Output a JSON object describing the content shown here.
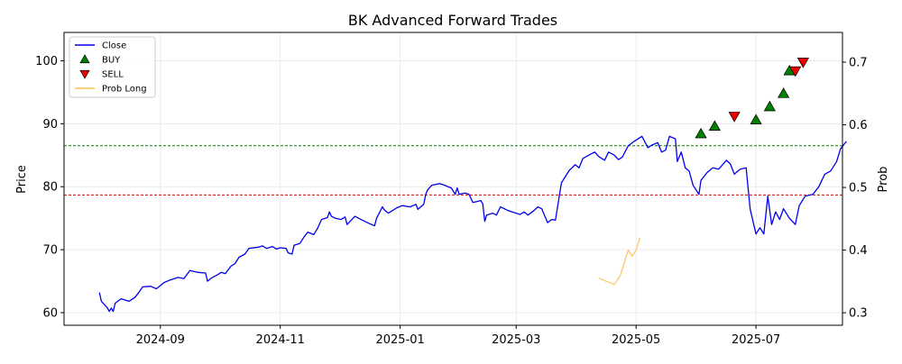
{
  "chart_data": {
    "type": "line",
    "title": "BK Advanced Forward Trades",
    "ylabel_left": "Price",
    "ylabel_right": "Prob",
    "xlabel": "",
    "x_range": [
      "2024-07-14",
      "2025-08-14"
    ],
    "ylim_left": [
      58,
      104.5
    ],
    "ylim_right": [
      0.28,
      0.7475
    ],
    "x_ticks": [
      {
        "date": "2024-09-01",
        "label": "2024-09"
      },
      {
        "date": "2024-11-01",
        "label": "2024-11"
      },
      {
        "date": "2025-01-01",
        "label": "2025-01"
      },
      {
        "date": "2025-03-01",
        "label": "2025-03"
      },
      {
        "date": "2025-05-01",
        "label": "2025-05"
      },
      {
        "date": "2025-07-01",
        "label": "2025-07"
      }
    ],
    "y_ticks_left": [
      60,
      70,
      80,
      90,
      100
    ],
    "y_ticks_right": [
      0.3,
      0.4,
      0.5,
      0.6,
      0.7
    ],
    "grid": true,
    "legend_position": "top-left",
    "legend": [
      {
        "label": "Close",
        "kind": "line",
        "color": "#0000ee"
      },
      {
        "label": "BUY",
        "kind": "marker-up",
        "color": "#008000"
      },
      {
        "label": "SELL",
        "kind": "marker-down",
        "color": "#ee0000"
      },
      {
        "label": "Prob Long",
        "kind": "line",
        "color": "#ffbf4d"
      }
    ],
    "hlines": [
      {
        "value": 86.5,
        "color": "#008000"
      },
      {
        "value": 78.7,
        "color": "#dd0000"
      }
    ],
    "series": [
      {
        "name": "Close",
        "axis": "left",
        "color": "#0000ee",
        "points": [
          [
            "2024-08-01",
            63.2
          ],
          [
            "2024-08-02",
            61.8
          ],
          [
            "2024-08-05",
            60.8
          ],
          [
            "2024-08-06",
            60.2
          ],
          [
            "2024-08-07",
            60.7
          ],
          [
            "2024-08-08",
            60.2
          ],
          [
            "2024-08-09",
            61.5
          ],
          [
            "2024-08-12",
            62.2
          ],
          [
            "2024-08-14",
            62.0
          ],
          [
            "2024-08-16",
            61.8
          ],
          [
            "2024-08-19",
            62.4
          ],
          [
            "2024-08-21",
            63.2
          ],
          [
            "2024-08-23",
            64.1
          ],
          [
            "2024-08-27",
            64.2
          ],
          [
            "2024-08-30",
            63.8
          ],
          [
            "2024-09-03",
            64.8
          ],
          [
            "2024-09-06",
            65.2
          ],
          [
            "2024-09-10",
            65.6
          ],
          [
            "2024-09-13",
            65.4
          ],
          [
            "2024-09-16",
            66.7
          ],
          [
            "2024-09-20",
            66.4
          ],
          [
            "2024-09-24",
            66.3
          ],
          [
            "2024-09-25",
            65.0
          ],
          [
            "2024-09-27",
            65.5
          ],
          [
            "2024-09-30",
            66.0
          ],
          [
            "2024-10-02",
            66.4
          ],
          [
            "2024-10-04",
            66.2
          ],
          [
            "2024-10-07",
            67.4
          ],
          [
            "2024-10-09",
            67.8
          ],
          [
            "2024-10-11",
            68.8
          ],
          [
            "2024-10-14",
            69.3
          ],
          [
            "2024-10-16",
            70.2
          ],
          [
            "2024-10-21",
            70.4
          ],
          [
            "2024-10-23",
            70.6
          ],
          [
            "2024-10-25",
            70.2
          ],
          [
            "2024-10-28",
            70.5
          ],
          [
            "2024-10-30",
            70.1
          ],
          [
            "2024-11-01",
            70.3
          ],
          [
            "2024-11-04",
            70.2
          ],
          [
            "2024-11-05",
            69.5
          ],
          [
            "2024-11-07",
            69.3
          ],
          [
            "2024-11-08",
            70.7
          ],
          [
            "2024-11-11",
            71.0
          ],
          [
            "2024-11-13",
            72.0
          ],
          [
            "2024-11-15",
            72.8
          ],
          [
            "2024-11-18",
            72.4
          ],
          [
            "2024-11-20",
            73.4
          ],
          [
            "2024-11-22",
            74.8
          ],
          [
            "2024-11-25",
            75.1
          ],
          [
            "2024-11-26",
            76.0
          ],
          [
            "2024-11-27",
            75.3
          ],
          [
            "2024-11-29",
            75.0
          ],
          [
            "2024-12-02",
            74.8
          ],
          [
            "2024-12-04",
            75.2
          ],
          [
            "2024-12-05",
            74.0
          ],
          [
            "2024-12-09",
            75.3
          ],
          [
            "2024-12-12",
            74.8
          ],
          [
            "2024-12-16",
            74.2
          ],
          [
            "2024-12-19",
            73.8
          ],
          [
            "2024-12-20",
            75.0
          ],
          [
            "2024-12-23",
            76.8
          ],
          [
            "2024-12-24",
            76.3
          ],
          [
            "2024-12-26",
            75.8
          ],
          [
            "2024-12-30",
            76.6
          ],
          [
            "2025-01-02",
            77.0
          ],
          [
            "2025-01-06",
            76.8
          ],
          [
            "2025-01-09",
            77.2
          ],
          [
            "2025-01-10",
            76.4
          ],
          [
            "2025-01-13",
            77.2
          ],
          [
            "2025-01-14",
            78.8
          ],
          [
            "2025-01-15",
            79.5
          ],
          [
            "2025-01-17",
            80.2
          ],
          [
            "2025-01-21",
            80.5
          ],
          [
            "2025-01-23",
            80.3
          ],
          [
            "2025-01-27",
            79.8
          ],
          [
            "2025-01-29",
            78.8
          ],
          [
            "2025-01-30",
            79.8
          ],
          [
            "2025-01-31",
            78.8
          ],
          [
            "2025-02-03",
            79.0
          ],
          [
            "2025-02-05",
            78.8
          ],
          [
            "2025-02-07",
            77.5
          ],
          [
            "2025-02-11",
            77.8
          ],
          [
            "2025-02-12",
            77.3
          ],
          [
            "2025-02-13",
            74.5
          ],
          [
            "2025-02-14",
            75.5
          ],
          [
            "2025-02-17",
            75.8
          ],
          [
            "2025-02-19",
            75.5
          ],
          [
            "2025-02-21",
            76.8
          ],
          [
            "2025-02-25",
            76.2
          ],
          [
            "2025-02-27",
            76.0
          ],
          [
            "2025-03-03",
            75.6
          ],
          [
            "2025-03-05",
            76.0
          ],
          [
            "2025-03-07",
            75.5
          ],
          [
            "2025-03-10",
            76.2
          ],
          [
            "2025-03-12",
            76.8
          ],
          [
            "2025-03-14",
            76.5
          ],
          [
            "2025-03-17",
            74.3
          ],
          [
            "2025-03-19",
            74.8
          ],
          [
            "2025-03-21",
            74.7
          ],
          [
            "2025-03-24",
            80.6
          ],
          [
            "2025-03-26",
            81.6
          ],
          [
            "2025-03-28",
            82.6
          ],
          [
            "2025-03-31",
            83.5
          ],
          [
            "2025-04-02",
            83.0
          ],
          [
            "2025-04-04",
            84.5
          ],
          [
            "2025-04-08",
            85.2
          ],
          [
            "2025-04-10",
            85.5
          ],
          [
            "2025-04-12",
            84.8
          ],
          [
            "2025-04-15",
            84.2
          ],
          [
            "2025-04-17",
            85.5
          ],
          [
            "2025-04-20",
            85.0
          ],
          [
            "2025-04-22",
            84.3
          ],
          [
            "2025-04-24",
            84.7
          ],
          [
            "2025-04-27",
            86.5
          ],
          [
            "2025-04-30",
            87.2
          ],
          [
            "2025-05-04",
            88.0
          ],
          [
            "2025-05-07",
            86.2
          ],
          [
            "2025-05-09",
            86.6
          ],
          [
            "2025-05-12",
            87.0
          ],
          [
            "2025-05-14",
            85.5
          ],
          [
            "2025-05-16",
            85.8
          ],
          [
            "2025-05-18",
            88.0
          ],
          [
            "2025-05-21",
            87.6
          ],
          [
            "2025-05-22",
            84.0
          ],
          [
            "2025-05-24",
            85.5
          ],
          [
            "2025-05-26",
            83.0
          ],
          [
            "2025-05-28",
            82.5
          ],
          [
            "2025-05-30",
            80.2
          ],
          [
            "2025-06-02",
            78.8
          ],
          [
            "2025-06-03",
            81.0
          ],
          [
            "2025-06-06",
            82.2
          ],
          [
            "2025-06-09",
            83.0
          ],
          [
            "2025-06-12",
            82.8
          ],
          [
            "2025-06-16",
            84.2
          ],
          [
            "2025-06-18",
            83.6
          ],
          [
            "2025-06-20",
            82.0
          ],
          [
            "2025-06-23",
            82.8
          ],
          [
            "2025-06-26",
            83.0
          ],
          [
            "2025-06-28",
            76.5
          ],
          [
            "2025-07-01",
            72.5
          ],
          [
            "2025-07-03",
            73.5
          ],
          [
            "2025-07-05",
            72.5
          ],
          [
            "2025-07-07",
            78.5
          ],
          [
            "2025-07-09",
            74.0
          ],
          [
            "2025-07-11",
            76.0
          ],
          [
            "2025-07-13",
            74.8
          ],
          [
            "2025-07-15",
            76.5
          ],
          [
            "2025-07-18",
            75.0
          ],
          [
            "2025-07-21",
            74.0
          ],
          [
            "2025-07-23",
            77.0
          ],
          [
            "2025-07-26",
            78.5
          ],
          [
            "2025-07-30",
            78.8
          ],
          [
            "2025-08-02",
            80.0
          ],
          [
            "2025-08-05",
            82.0
          ],
          [
            "2025-08-08",
            82.5
          ],
          [
            "2025-08-11",
            84.0
          ],
          [
            "2025-08-13",
            86.0
          ],
          [
            "2025-08-16",
            87.2
          ]
        ]
      },
      {
        "name": "Prob Long",
        "axis": "right",
        "color": "#ffbf4d",
        "points": [
          [
            "2025-04-12",
            0.355
          ],
          [
            "2025-04-16",
            0.35
          ],
          [
            "2025-04-20",
            0.345
          ],
          [
            "2025-04-23",
            0.36
          ],
          [
            "2025-04-25",
            0.38
          ],
          [
            "2025-04-27",
            0.4
          ],
          [
            "2025-04-29",
            0.39
          ],
          [
            "2025-05-01",
            0.4
          ],
          [
            "2025-05-03",
            0.42
          ]
        ]
      }
    ],
    "buy_markers": [
      [
        "2025-06-03",
        88.4
      ],
      [
        "2025-06-10",
        89.6
      ],
      [
        "2025-07-01",
        90.6
      ],
      [
        "2025-07-08",
        92.7
      ],
      [
        "2025-07-15",
        94.8
      ],
      [
        "2025-07-18",
        98.4
      ]
    ],
    "sell_markers": [
      [
        "2025-06-20",
        91.2
      ],
      [
        "2025-07-21",
        98.4
      ],
      [
        "2025-07-25",
        99.8
      ]
    ]
  }
}
